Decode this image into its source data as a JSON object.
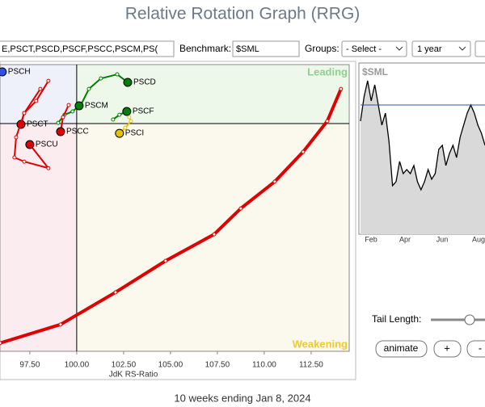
{
  "header": {
    "title": "Relative Rotation Graph (RRG)"
  },
  "toolbar": {
    "symbols": "E,PSCT,PSCD,PSCF,PSCC,PSCM,PS(",
    "benchmark_label": "Benchmark:",
    "benchmark": "$SML",
    "groups_label": "Groups:",
    "groups": "- Select -",
    "period": "1 year"
  },
  "rrg": {
    "xlabel": "JdK RS-Ratio",
    "xlim": [
      95.91,
      114.53
    ],
    "ylim": [
      87.84,
      103.15
    ],
    "center": [
      100,
      100
    ],
    "xticks": [
      {
        "value": 97.5,
        "label": "97.50"
      },
      {
        "value": 100,
        "label": "100.00"
      },
      {
        "value": 102.5,
        "label": "102.50"
      },
      {
        "value": 105,
        "label": "105.00"
      },
      {
        "value": 107.5,
        "label": "107.50"
      },
      {
        "value": 110,
        "label": "110.00"
      },
      {
        "value": 112.5,
        "label": "112.50"
      }
    ],
    "quadrants": {
      "leading": "Leading",
      "weakening": "Weakening"
    },
    "tails": [
      {
        "color": "#e00000",
        "x": [
          95.91,
          99.14,
          102.07,
          104.74,
          107.33,
          108.75,
          110.56,
          112.07,
          113.36,
          114.09
        ],
        "y": [
          88.28,
          89.27,
          90.99,
          92.67,
          94.09,
          95.47,
          96.9,
          98.49,
          100.13,
          101.85
        ]
      },
      {
        "name": "PSCD",
        "color": "#008000",
        "x": [
          100.22,
          100.65,
          101.29,
          102.16,
          102.72
        ],
        "y": [
          100.99,
          101.85,
          102.41,
          102.63,
          102.2
        ]
      },
      {
        "name": "PSCM",
        "color": "#008000",
        "x": [
          99.01,
          99.35,
          99.78,
          100.13
        ],
        "y": [
          100.04,
          100.47,
          100.65,
          100.95
        ]
      },
      {
        "name": "PSCF",
        "color": "#008000",
        "x": [
          101.94,
          102.28,
          102.67
        ],
        "y": [
          100.22,
          100.47,
          100.65
        ]
      },
      {
        "name": "PSCI",
        "color": "#e6c200",
        "x": [
          102.8,
          102.89,
          102.59,
          102.28
        ],
        "y": [
          100.34,
          100.13,
          99.78,
          99.48
        ]
      },
      {
        "name": "PSCC",
        "color": "#e00000",
        "x": [
          99.57,
          99.27,
          99.14
        ],
        "y": [
          100.99,
          100.34,
          99.57
        ]
      },
      {
        "name": "PSCT",
        "color": "#e00000",
        "x": [
          98.49,
          97.84,
          97.2,
          97.03
        ],
        "y": [
          102.28,
          101.21,
          100.56,
          99.96
        ]
      },
      {
        "name": "PSCU",
        "color": "#e00000",
        "x": [
          98.06,
          97.2,
          96.77,
          96.68,
          97.2,
          98.49,
          97.5
        ],
        "y": [
          101.85,
          100.56,
          99.27,
          98.19,
          97.97,
          97.62,
          98.88
        ]
      },
      {
        "name": "PSCH",
        "color": "#3050e0",
        "x": [
          96.03
        ],
        "y": [
          102.76
        ]
      }
    ]
  },
  "benchmark_chart": {
    "title": "$SML",
    "ylim": [
      0,
      100
    ],
    "reference": 76.2,
    "months": [
      "Feb",
      "Apr",
      "Jun",
      "Aug"
    ],
    "values": [
      66.7,
      81.0,
      90.5,
      78.6,
      88.1,
      76.2,
      64.3,
      71.4,
      54.8,
      28.6,
      31.0,
      42.9,
      35.7,
      38.1,
      35.7,
      40.5,
      31.0,
      26.2,
      31.0,
      38.1,
      32.4,
      35.7,
      50.0,
      52.4,
      40.5,
      47.6,
      52.4,
      45.2,
      57.1,
      64.3,
      71.4,
      76.2,
      71.4,
      64.3,
      59.5,
      52.4
    ]
  },
  "controls": {
    "tail_length": "Tail Length:",
    "animate": "animate",
    "plus": "+",
    "minus": "-"
  },
  "footer": "10 weeks ending Jan 8, 2024"
}
